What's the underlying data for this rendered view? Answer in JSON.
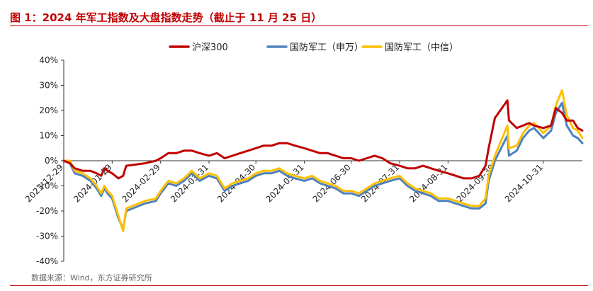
{
  "title": "图 1：2024 年军工指数及大盘指数走势（截止于 11 月 25 日）",
  "source": "数据来源：Wind，东方证券研究所",
  "chart_data": {
    "type": "line",
    "title": "图 1：2024 年军工指数及大盘指数走势（截止于 11 月 25 日）",
    "xlabel": "",
    "ylabel": "",
    "ylim": [
      -40,
      40
    ],
    "yticks": [
      40,
      30,
      20,
      10,
      0,
      -10,
      -20,
      -30,
      -40
    ],
    "ytick_labels": [
      "40%",
      "30%",
      "20%",
      "10%",
      "0%",
      "-10%",
      "-20%",
      "-30%",
      "-40%"
    ],
    "xticks": [
      "2023-12-29",
      "2024-01-29",
      "2024-02-29",
      "2024-03-31",
      "2024-04-30",
      "2024-05-31",
      "2024-06-30",
      "2024-07-31",
      "2024-08-31",
      "2024-09-30",
      "2024-10-31"
    ],
    "xtick_labels": [
      "2023-12-29",
      "2024-01-29",
      "2024-02-29",
      "2024-03-31",
      "2024-04-30",
      "2024-05-31",
      "2024-06-30",
      "2024-07-31",
      "2024-08-31",
      "2024-09-30",
      "2024-10-31"
    ],
    "x_range": [
      "2023-12-29",
      "2024-11-25"
    ],
    "legend_position": "top-center",
    "grid": false,
    "series": [
      {
        "name": "沪深300",
        "color": "#c00000",
        "points": [
          [
            "2023-12-29",
            0
          ],
          [
            "2024-01-02",
            -1
          ],
          [
            "2024-01-05",
            -3
          ],
          [
            "2024-01-10",
            -4
          ],
          [
            "2024-01-15",
            -4
          ],
          [
            "2024-01-19",
            -5
          ],
          [
            "2024-01-22",
            -6
          ],
          [
            "2024-01-24",
            -3
          ],
          [
            "2024-01-26",
            -4
          ],
          [
            "2024-01-29",
            -5
          ],
          [
            "2024-02-02",
            -7
          ],
          [
            "2024-02-05",
            -6
          ],
          [
            "2024-02-07",
            -2
          ],
          [
            "2024-02-19",
            -1
          ],
          [
            "2024-02-26",
            0
          ],
          [
            "2024-02-29",
            1
          ],
          [
            "2024-03-05",
            3
          ],
          [
            "2024-03-10",
            3
          ],
          [
            "2024-03-15",
            4
          ],
          [
            "2024-03-20",
            4
          ],
          [
            "2024-03-25",
            3
          ],
          [
            "2024-03-31",
            2
          ],
          [
            "2024-04-05",
            3
          ],
          [
            "2024-04-10",
            1
          ],
          [
            "2024-04-15",
            2
          ],
          [
            "2024-04-20",
            3
          ],
          [
            "2024-04-25",
            4
          ],
          [
            "2024-04-30",
            5
          ],
          [
            "2024-05-05",
            6
          ],
          [
            "2024-05-10",
            6
          ],
          [
            "2024-05-15",
            7
          ],
          [
            "2024-05-20",
            7
          ],
          [
            "2024-05-25",
            6
          ],
          [
            "2024-05-31",
            5
          ],
          [
            "2024-06-05",
            4
          ],
          [
            "2024-06-10",
            3
          ],
          [
            "2024-06-15",
            3
          ],
          [
            "2024-06-20",
            2
          ],
          [
            "2024-06-25",
            1
          ],
          [
            "2024-06-30",
            1
          ],
          [
            "2024-07-05",
            0
          ],
          [
            "2024-07-10",
            1
          ],
          [
            "2024-07-15",
            2
          ],
          [
            "2024-07-20",
            1
          ],
          [
            "2024-07-25",
            -1
          ],
          [
            "2024-07-31",
            -2
          ],
          [
            "2024-08-05",
            -3
          ],
          [
            "2024-08-10",
            -3
          ],
          [
            "2024-08-15",
            -2
          ],
          [
            "2024-08-20",
            -3
          ],
          [
            "2024-08-25",
            -4
          ],
          [
            "2024-08-31",
            -5
          ],
          [
            "2024-09-05",
            -6
          ],
          [
            "2024-09-10",
            -7
          ],
          [
            "2024-09-15",
            -7
          ],
          [
            "2024-09-20",
            -6
          ],
          [
            "2024-09-24",
            -2
          ],
          [
            "2024-09-26",
            5
          ],
          [
            "2024-09-30",
            17
          ],
          [
            "2024-10-08",
            24
          ],
          [
            "2024-10-09",
            16
          ],
          [
            "2024-10-14",
            13
          ],
          [
            "2024-10-18",
            14
          ],
          [
            "2024-10-22",
            15
          ],
          [
            "2024-10-25",
            14
          ],
          [
            "2024-10-31",
            13
          ],
          [
            "2024-11-05",
            14
          ],
          [
            "2024-11-08",
            21
          ],
          [
            "2024-11-12",
            19
          ],
          [
            "2024-11-15",
            16
          ],
          [
            "2024-11-19",
            16
          ],
          [
            "2024-11-22",
            13
          ],
          [
            "2024-11-25",
            12
          ]
        ]
      },
      {
        "name": "国防军工（申万）",
        "color": "#4f81bd",
        "points": [
          [
            "2023-12-29",
            0
          ],
          [
            "2024-01-02",
            -1
          ],
          [
            "2024-01-05",
            -5
          ],
          [
            "2024-01-10",
            -6
          ],
          [
            "2024-01-15",
            -8
          ],
          [
            "2024-01-19",
            -11
          ],
          [
            "2024-01-22",
            -14
          ],
          [
            "2024-01-24",
            -11
          ],
          [
            "2024-01-26",
            -13
          ],
          [
            "2024-01-29",
            -15
          ],
          [
            "2024-02-02",
            -23
          ],
          [
            "2024-02-05",
            -27
          ],
          [
            "2024-02-07",
            -20
          ],
          [
            "2024-02-19",
            -17
          ],
          [
            "2024-02-26",
            -16
          ],
          [
            "2024-02-29",
            -13
          ],
          [
            "2024-03-05",
            -9
          ],
          [
            "2024-03-10",
            -10
          ],
          [
            "2024-03-15",
            -8
          ],
          [
            "2024-03-20",
            -5
          ],
          [
            "2024-03-25",
            -8
          ],
          [
            "2024-03-31",
            -6
          ],
          [
            "2024-04-05",
            -7
          ],
          [
            "2024-04-10",
            -12
          ],
          [
            "2024-04-15",
            -10
          ],
          [
            "2024-04-20",
            -9
          ],
          [
            "2024-04-25",
            -8
          ],
          [
            "2024-04-30",
            -6
          ],
          [
            "2024-05-05",
            -5
          ],
          [
            "2024-05-10",
            -5
          ],
          [
            "2024-05-15",
            -4
          ],
          [
            "2024-05-20",
            -6
          ],
          [
            "2024-05-25",
            -7
          ],
          [
            "2024-05-31",
            -8
          ],
          [
            "2024-06-05",
            -7
          ],
          [
            "2024-06-10",
            -9
          ],
          [
            "2024-06-15",
            -10
          ],
          [
            "2024-06-20",
            -11
          ],
          [
            "2024-06-25",
            -13
          ],
          [
            "2024-06-30",
            -13
          ],
          [
            "2024-07-05",
            -14
          ],
          [
            "2024-07-10",
            -12
          ],
          [
            "2024-07-15",
            -10
          ],
          [
            "2024-07-20",
            -9
          ],
          [
            "2024-07-25",
            -8
          ],
          [
            "2024-07-31",
            -7
          ],
          [
            "2024-08-05",
            -10
          ],
          [
            "2024-08-10",
            -12
          ],
          [
            "2024-08-15",
            -13
          ],
          [
            "2024-08-20",
            -14
          ],
          [
            "2024-08-25",
            -16
          ],
          [
            "2024-08-31",
            -16
          ],
          [
            "2024-09-05",
            -17
          ],
          [
            "2024-09-10",
            -18
          ],
          [
            "2024-09-15",
            -19
          ],
          [
            "2024-09-20",
            -19
          ],
          [
            "2024-09-24",
            -17
          ],
          [
            "2024-09-26",
            -8
          ],
          [
            "2024-09-30",
            0
          ],
          [
            "2024-10-08",
            10
          ],
          [
            "2024-10-09",
            2
          ],
          [
            "2024-10-14",
            4
          ],
          [
            "2024-10-18",
            9
          ],
          [
            "2024-10-22",
            12
          ],
          [
            "2024-10-25",
            13
          ],
          [
            "2024-10-31",
            9
          ],
          [
            "2024-11-05",
            12
          ],
          [
            "2024-11-08",
            19
          ],
          [
            "2024-11-12",
            23
          ],
          [
            "2024-11-15",
            14
          ],
          [
            "2024-11-19",
            10
          ],
          [
            "2024-11-22",
            9
          ],
          [
            "2024-11-25",
            7
          ]
        ]
      },
      {
        "name": "国防军工（中信）",
        "color": "#ffc000",
        "points": [
          [
            "2023-12-29",
            0
          ],
          [
            "2024-01-02",
            0
          ],
          [
            "2024-01-05",
            -4
          ],
          [
            "2024-01-10",
            -5
          ],
          [
            "2024-01-15",
            -7
          ],
          [
            "2024-01-19",
            -10
          ],
          [
            "2024-01-22",
            -13
          ],
          [
            "2024-01-24",
            -10
          ],
          [
            "2024-01-26",
            -12
          ],
          [
            "2024-01-29",
            -14
          ],
          [
            "2024-02-02",
            -22
          ],
          [
            "2024-02-05",
            -28
          ],
          [
            "2024-02-07",
            -19
          ],
          [
            "2024-02-19",
            -16
          ],
          [
            "2024-02-26",
            -15
          ],
          [
            "2024-02-29",
            -12
          ],
          [
            "2024-03-05",
            -8
          ],
          [
            "2024-03-10",
            -9
          ],
          [
            "2024-03-15",
            -7
          ],
          [
            "2024-03-20",
            -4
          ],
          [
            "2024-03-25",
            -7
          ],
          [
            "2024-03-31",
            -5
          ],
          [
            "2024-04-05",
            -6
          ],
          [
            "2024-04-10",
            -11
          ],
          [
            "2024-04-15",
            -9
          ],
          [
            "2024-04-20",
            -8
          ],
          [
            "2024-04-25",
            -7
          ],
          [
            "2024-04-30",
            -5
          ],
          [
            "2024-05-05",
            -4
          ],
          [
            "2024-05-10",
            -4
          ],
          [
            "2024-05-15",
            -3
          ],
          [
            "2024-05-20",
            -5
          ],
          [
            "2024-05-25",
            -6
          ],
          [
            "2024-05-31",
            -7
          ],
          [
            "2024-06-05",
            -6
          ],
          [
            "2024-06-10",
            -8
          ],
          [
            "2024-06-15",
            -9
          ],
          [
            "2024-06-20",
            -10
          ],
          [
            "2024-06-25",
            -12
          ],
          [
            "2024-06-30",
            -12
          ],
          [
            "2024-07-05",
            -13
          ],
          [
            "2024-07-10",
            -11
          ],
          [
            "2024-07-15",
            -9
          ],
          [
            "2024-07-20",
            -8
          ],
          [
            "2024-07-25",
            -7
          ],
          [
            "2024-07-31",
            -6
          ],
          [
            "2024-08-05",
            -9
          ],
          [
            "2024-08-10",
            -11
          ],
          [
            "2024-08-15",
            -12
          ],
          [
            "2024-08-20",
            -13
          ],
          [
            "2024-08-25",
            -15
          ],
          [
            "2024-08-31",
            -15
          ],
          [
            "2024-09-05",
            -16
          ],
          [
            "2024-09-10",
            -17
          ],
          [
            "2024-09-15",
            -18
          ],
          [
            "2024-09-20",
            -18
          ],
          [
            "2024-09-24",
            -15
          ],
          [
            "2024-09-26",
            -6
          ],
          [
            "2024-09-30",
            2
          ],
          [
            "2024-10-08",
            14
          ],
          [
            "2024-10-09",
            5
          ],
          [
            "2024-10-14",
            6
          ],
          [
            "2024-10-18",
            11
          ],
          [
            "2024-10-22",
            14
          ],
          [
            "2024-10-25",
            15
          ],
          [
            "2024-10-31",
            11
          ],
          [
            "2024-11-05",
            14
          ],
          [
            "2024-11-08",
            22
          ],
          [
            "2024-11-12",
            28
          ],
          [
            "2024-11-15",
            18
          ],
          [
            "2024-11-19",
            13
          ],
          [
            "2024-11-22",
            12
          ],
          [
            "2024-11-25",
            9
          ]
        ]
      }
    ]
  }
}
